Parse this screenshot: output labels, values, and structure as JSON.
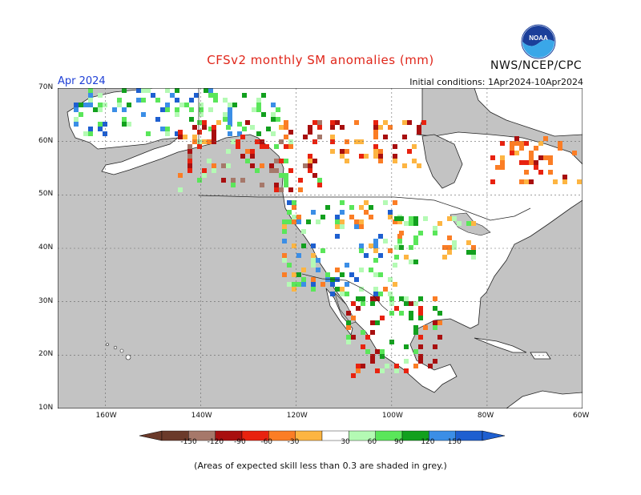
{
  "header": {
    "title": "CFSv2 monthly SM anomalies (mm)",
    "agency": "NWS/NCEP/CPC",
    "month": "Apr 2024",
    "initial_conditions": "Initial conditions: 1Apr2024-10Apr2024",
    "logo_text": "NOAA"
  },
  "map": {
    "lat_labels": [
      "70N",
      "60N",
      "50N",
      "40N",
      "30N",
      "20N",
      "10N"
    ],
    "lon_labels": [
      "160W",
      "140W",
      "120W",
      "100W",
      "80W",
      "60W"
    ],
    "lat_values": [
      70,
      60,
      50,
      40,
      30,
      20,
      10
    ],
    "lon_values": [
      -160,
      -140,
      -120,
      -100,
      -80,
      -60
    ],
    "extent": {
      "lon_min": -170,
      "lon_max": -60,
      "lat_min": 10,
      "lat_max": 70
    },
    "ocean_color": "#c3c3c3",
    "land_color": "#ffffff"
  },
  "legend": {
    "labels": [
      "-150",
      "-120",
      "-90",
      "-60",
      "-30",
      "30",
      "60",
      "90",
      "120",
      "150"
    ],
    "colors": [
      "#6b3a2a",
      "#a6786a",
      "#a80f0f",
      "#e8220f",
      "#fb7d25",
      "#fdb542",
      "#ffffff",
      "#b4fab4",
      "#5ae65a",
      "#12a01e",
      "#3b8ee6",
      "#1e5fd0"
    ]
  },
  "footnote": "(Areas of expected skill less than 0.3 are shaded in grey.)"
}
